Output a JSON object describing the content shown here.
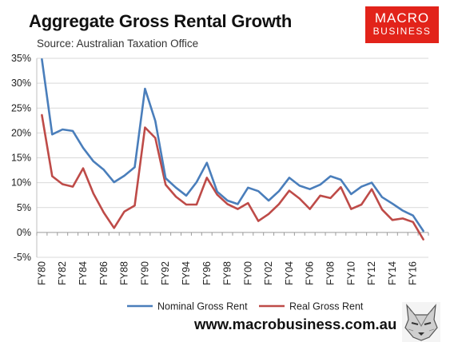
{
  "title": "Aggregate Gross Rental Growth",
  "subtitle": "Source: Australian Taxation Office",
  "logo": {
    "line1": "MACRO",
    "line2": "BUSINESS",
    "color": "#e2231a"
  },
  "website": "www.macrobusiness.com.au",
  "chart_data": {
    "type": "line",
    "title": "Aggregate Gross Rental Growth",
    "x": [
      "FY80",
      "FY81",
      "FY82",
      "FY83",
      "FY84",
      "FY85",
      "FY86",
      "FY87",
      "FY88",
      "FY89",
      "FY90",
      "FY91",
      "FY92",
      "FY93",
      "FY94",
      "FY95",
      "FY96",
      "FY97",
      "FY98",
      "FY99",
      "FY00",
      "FY01",
      "FY02",
      "FY03",
      "FY04",
      "FY05",
      "FY06",
      "FY07",
      "FY08",
      "FY09",
      "FY10",
      "FY11",
      "FY12",
      "FY13",
      "FY14",
      "FY15",
      "FY16",
      "FY17"
    ],
    "tick_labels": [
      "FY80",
      "FY82",
      "FY84",
      "FY86",
      "FY88",
      "FY90",
      "FY92",
      "FY94",
      "FY96",
      "FY98",
      "FY00",
      "FY02",
      "FY04",
      "FY06",
      "FY08",
      "FY10",
      "FY12",
      "FY14",
      "FY16"
    ],
    "y_ticks": [
      "35%",
      "30%",
      "25%",
      "20%",
      "15%",
      "10%",
      "5%",
      "0%",
      "-5%"
    ],
    "ylim": [
      -5,
      35
    ],
    "grid": true,
    "legend_position": "bottom",
    "series": [
      {
        "name": "Nominal Gross Rent",
        "color": "#4a7ebb",
        "values": [
          34.8,
          19.7,
          20.7,
          20.4,
          17.0,
          14.3,
          12.6,
          10.1,
          11.4,
          13.1,
          28.9,
          22.4,
          10.9,
          9.0,
          7.4,
          10.1,
          14.0,
          8.2,
          6.4,
          5.7,
          9.0,
          8.3,
          6.4,
          8.3,
          11.0,
          9.4,
          8.7,
          9.6,
          11.3,
          10.6,
          7.7,
          9.2,
          10.0,
          7.1,
          5.8,
          4.4,
          3.4,
          0.3
        ]
      },
      {
        "name": "Real Gross Rent",
        "color": "#be4b48",
        "values": [
          23.6,
          11.3,
          9.7,
          9.2,
          12.9,
          7.8,
          4.0,
          0.9,
          4.2,
          5.4,
          21.1,
          19.0,
          9.6,
          7.2,
          5.6,
          5.6,
          11.0,
          7.6,
          5.7,
          4.7,
          5.9,
          2.3,
          3.7,
          5.7,
          8.4,
          6.8,
          4.7,
          7.4,
          6.9,
          9.1,
          4.7,
          5.6,
          8.7,
          4.6,
          2.5,
          2.8,
          2.1,
          -1.4
        ]
      }
    ]
  }
}
